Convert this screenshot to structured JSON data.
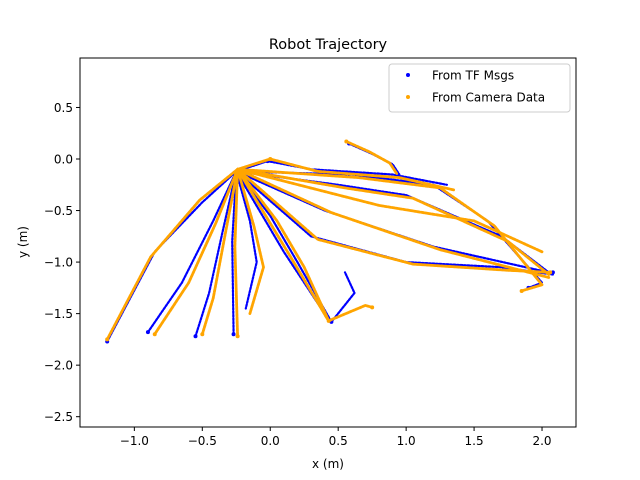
{
  "chart_data": {
    "type": "scatter",
    "title": "Robot Trajectory",
    "xlabel": "x (m)",
    "ylabel": "y (m)",
    "xlim": [
      -1.4,
      2.25
    ],
    "ylim": [
      -2.6,
      0.98
    ],
    "xticks": [
      -1.0,
      -0.5,
      0.0,
      0.5,
      1.0,
      1.5,
      2.0
    ],
    "xtick_labels": [
      "−1.0",
      "−0.5",
      "0.0",
      "0.5",
      "1.0",
      "1.5",
      "2.0"
    ],
    "yticks": [
      0.5,
      0.0,
      -0.5,
      -1.0,
      -1.5,
      -2.0,
      -2.5
    ],
    "ytick_labels": [
      "0.5",
      "0.0",
      "−0.5",
      "−1.0",
      "−1.5",
      "−2.0",
      "−2.5"
    ],
    "grid": false,
    "legend_position": "top-right",
    "series": [
      {
        "name": "From TF Msgs",
        "color": "#0000ff",
        "paths": [
          [
            [
              -0.25,
              -0.12
            ],
            [
              -0.5,
              -0.42
            ],
            [
              -0.85,
              -0.9
            ],
            [
              -1.2,
              -1.77
            ]
          ],
          [
            [
              -0.25,
              -0.12
            ],
            [
              -0.42,
              -0.6
            ],
            [
              -0.65,
              -1.2
            ],
            [
              -0.9,
              -1.68
            ]
          ],
          [
            [
              -0.25,
              -0.12
            ],
            [
              -0.35,
              -0.7
            ],
            [
              -0.45,
              -1.3
            ],
            [
              -0.55,
              -1.72
            ]
          ],
          [
            [
              -0.25,
              -0.12
            ],
            [
              -0.28,
              -0.8
            ],
            [
              -0.27,
              -1.7
            ]
          ],
          [
            [
              -0.25,
              -0.12
            ],
            [
              -0.15,
              -0.6
            ],
            [
              -0.1,
              -1.0
            ],
            [
              -0.18,
              -1.45
            ]
          ],
          [
            [
              -0.25,
              -0.12
            ],
            [
              0.0,
              -0.55
            ],
            [
              0.2,
              -1.0
            ],
            [
              0.45,
              -1.58
            ],
            [
              0.62,
              -1.3
            ],
            [
              0.55,
              -1.1
            ]
          ],
          [
            [
              -0.25,
              -0.12
            ],
            [
              0.4,
              -0.5
            ],
            [
              1.2,
              -0.85
            ],
            [
              2.05,
              -1.1
            ]
          ],
          [
            [
              -0.25,
              -0.12
            ],
            [
              0.5,
              -0.25
            ],
            [
              1.0,
              -0.35
            ],
            [
              1.7,
              -0.75
            ],
            [
              2.05,
              -1.1
            ]
          ],
          [
            [
              -0.25,
              -0.12
            ],
            [
              0.6,
              -0.15
            ],
            [
              1.2,
              -0.25
            ],
            [
              1.6,
              -0.6
            ],
            [
              2.0,
              -1.2
            ],
            [
              1.9,
              -1.25
            ]
          ],
          [
            [
              -0.25,
              -0.12
            ],
            [
              0.3,
              -0.75
            ],
            [
              1.0,
              -1.0
            ],
            [
              1.7,
              -1.05
            ],
            [
              2.08,
              -1.12
            ]
          ],
          [
            [
              -0.25,
              -0.12
            ],
            [
              -0.02,
              -0.02
            ],
            [
              0.3,
              -0.1
            ],
            [
              0.9,
              -0.15
            ],
            [
              1.3,
              -0.25
            ]
          ],
          [
            [
              0.58,
              0.15
            ],
            [
              0.75,
              0.05
            ],
            [
              0.9,
              -0.05
            ],
            [
              0.95,
              -0.15
            ]
          ],
          [
            [
              -0.25,
              -0.12
            ],
            [
              0.1,
              -0.9
            ],
            [
              0.3,
              -1.3
            ],
            [
              0.4,
              -1.5
            ]
          ]
        ],
        "points": [
          [
            -1.2,
            -1.77
          ],
          [
            -0.27,
            -1.7
          ],
          [
            0.45,
            -1.58
          ],
          [
            2.08,
            -1.1
          ],
          [
            1.9,
            -1.25
          ],
          [
            -0.02,
            -0.02
          ],
          [
            0.58,
            0.15
          ],
          [
            -0.9,
            -1.68
          ],
          [
            -0.55,
            -1.72
          ]
        ]
      },
      {
        "name": "From Camera Data",
        "color": "#ffa500",
        "paths": [
          [
            [
              -0.24,
              -0.1
            ],
            [
              -0.52,
              -0.4
            ],
            [
              -0.88,
              -0.95
            ],
            [
              -1.2,
              -1.75
            ]
          ],
          [
            [
              -0.24,
              -0.1
            ],
            [
              -0.4,
              -0.62
            ],
            [
              -0.6,
              -1.2
            ],
            [
              -0.85,
              -1.7
            ]
          ],
          [
            [
              -0.24,
              -0.1
            ],
            [
              -0.33,
              -0.72
            ],
            [
              -0.42,
              -1.35
            ],
            [
              -0.5,
              -1.7
            ]
          ],
          [
            [
              -0.24,
              -0.1
            ],
            [
              -0.26,
              -0.85
            ],
            [
              -0.24,
              -1.72
            ]
          ],
          [
            [
              -0.24,
              -0.1
            ],
            [
              -0.12,
              -0.65
            ],
            [
              -0.05,
              -1.05
            ],
            [
              -0.15,
              -1.5
            ]
          ],
          [
            [
              -0.24,
              -0.1
            ],
            [
              0.05,
              -0.6
            ],
            [
              0.25,
              -1.05
            ],
            [
              0.43,
              -1.57
            ],
            [
              0.7,
              -1.42
            ],
            [
              0.75,
              -1.44
            ]
          ],
          [
            [
              -0.24,
              -0.1
            ],
            [
              0.45,
              -0.52
            ],
            [
              1.25,
              -0.88
            ],
            [
              2.05,
              -1.15
            ]
          ],
          [
            [
              -0.24,
              -0.1
            ],
            [
              0.55,
              -0.28
            ],
            [
              1.05,
              -0.38
            ],
            [
              1.75,
              -0.8
            ],
            [
              2.05,
              -1.12
            ]
          ],
          [
            [
              -0.24,
              -0.1
            ],
            [
              0.65,
              -0.18
            ],
            [
              1.25,
              -0.28
            ],
            [
              1.65,
              -0.65
            ],
            [
              2.0,
              -1.22
            ],
            [
              1.85,
              -1.28
            ]
          ],
          [
            [
              -0.24,
              -0.1
            ],
            [
              0.35,
              -0.78
            ],
            [
              1.05,
              -1.02
            ],
            [
              1.75,
              -1.08
            ],
            [
              2.06,
              -1.1
            ]
          ],
          [
            [
              -0.24,
              -0.1
            ],
            [
              0.0,
              0.0
            ],
            [
              0.35,
              -0.12
            ],
            [
              0.95,
              -0.18
            ],
            [
              1.35,
              -0.3
            ]
          ],
          [
            [
              0.56,
              0.17
            ],
            [
              0.73,
              0.07
            ],
            [
              0.88,
              -0.04
            ],
            [
              0.93,
              -0.14
            ]
          ],
          [
            [
              -0.24,
              -0.1
            ],
            [
              0.15,
              -0.95
            ],
            [
              0.33,
              -1.35
            ],
            [
              0.42,
              -1.55
            ]
          ],
          [
            [
              -0.24,
              -0.1
            ],
            [
              0.8,
              -0.45
            ],
            [
              1.5,
              -0.6
            ],
            [
              2.0,
              -0.9
            ]
          ]
        ],
        "points": [
          [
            -1.2,
            -1.75
          ],
          [
            -0.24,
            -1.72
          ],
          [
            0.43,
            -1.57
          ],
          [
            2.06,
            -1.1
          ],
          [
            1.85,
            -1.28
          ],
          [
            0.0,
            0.0
          ],
          [
            0.56,
            0.17
          ],
          [
            -0.85,
            -1.7
          ],
          [
            -0.5,
            -1.7
          ],
          [
            0.75,
            -1.44
          ]
        ]
      }
    ]
  }
}
